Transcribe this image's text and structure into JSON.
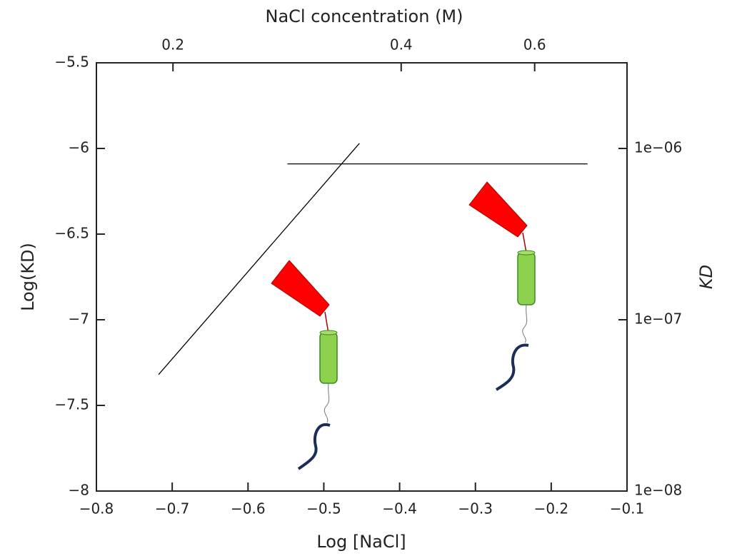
{
  "chart_data": {
    "type": "line",
    "xlabel": "Log [NaCl]",
    "ylabel": "Log(KD)",
    "x2label": "NaCl concentration (M)",
    "y2label": "KD",
    "xlim": [
      -0.8,
      -0.1
    ],
    "xticks": [
      {
        "value": -0.8,
        "label": "−0.8"
      },
      {
        "value": -0.7,
        "label": "−0.7"
      },
      {
        "value": -0.6,
        "label": "−0.6"
      },
      {
        "value": -0.5,
        "label": "−0.5"
      },
      {
        "value": -0.4,
        "label": "−0.4"
      },
      {
        "value": -0.3,
        "label": "−0.3"
      },
      {
        "value": -0.2,
        "label": "−0.2"
      },
      {
        "value": -0.1,
        "label": "−0.1"
      }
    ],
    "ylim": [
      -8,
      -5.5
    ],
    "yticks": [
      {
        "value": -8,
        "label": "−8"
      },
      {
        "value": -7.5,
        "label": "−7.5"
      },
      {
        "value": -7,
        "label": "−7"
      },
      {
        "value": -6.5,
        "label": "−6.5"
      },
      {
        "value": -6,
        "label": "−6"
      },
      {
        "value": -5.5,
        "label": "−5.5"
      }
    ],
    "x2scale": "log",
    "x2lim": [
      0.1585,
      0.7943
    ],
    "x2ticks": [
      0.2,
      0.4,
      0.6
    ],
    "y2scale": "log",
    "y2lim": [
      1e-08,
      3.162e-06
    ],
    "y2ticks": [
      {
        "value": 1e-08,
        "label": "1e−08"
      },
      {
        "value": 1e-07,
        "label": "1e−07"
      },
      {
        "value": 1e-06,
        "label": "1e−06"
      }
    ],
    "series": [
      {
        "color": "#000000",
        "x": [
          -0.718,
          -0.453
        ],
        "values": [
          -7.32,
          -5.97
        ]
      },
      {
        "color": "#000000",
        "x": [
          -0.548,
          -0.152
        ],
        "values": [
          -6.09,
          -6.09
        ]
      }
    ]
  }
}
